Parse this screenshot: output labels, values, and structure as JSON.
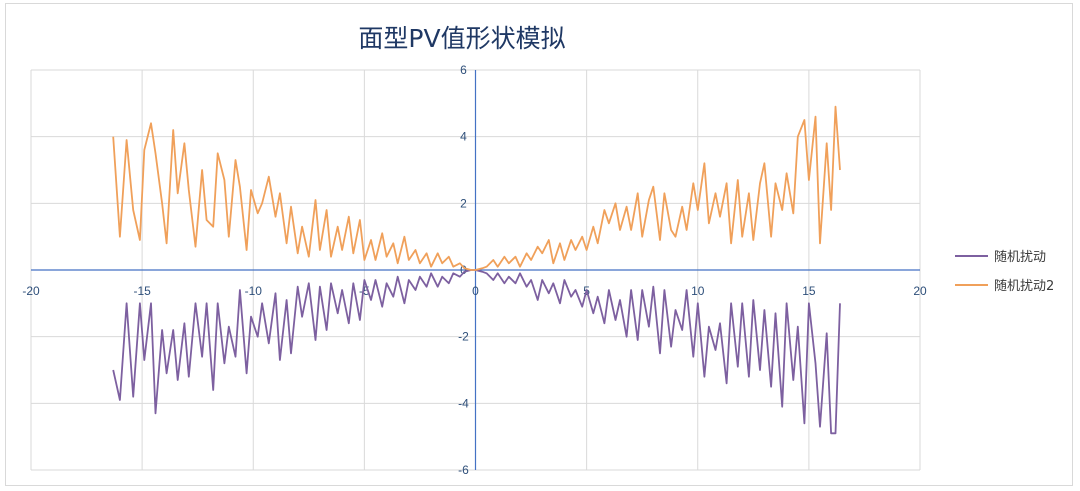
{
  "chart_data": {
    "type": "line",
    "title": "面型PV值形状模拟",
    "xlabel": "",
    "ylabel": "",
    "xlim": [
      -20,
      20
    ],
    "ylim": [
      -6,
      6
    ],
    "xticks": [
      -20,
      -15,
      -10,
      -5,
      0,
      5,
      10,
      15,
      20
    ],
    "yticks": [
      -6,
      -4,
      -2,
      0,
      2,
      4,
      6
    ],
    "grid": true,
    "legend_position": "right",
    "colors": {
      "series1": "#7d60a0",
      "series2": "#f0a05a",
      "grid": "#d9d9d9",
      "axis": "#4472c4"
    },
    "series": [
      {
        "name": "随机扰动",
        "color": "#7d60a0",
        "points": [
          [
            -16.3,
            -3.0
          ],
          [
            -16.0,
            -3.9
          ],
          [
            -15.7,
            -1.0
          ],
          [
            -15.4,
            -3.8
          ],
          [
            -15.1,
            -1.0
          ],
          [
            -14.9,
            -2.7
          ],
          [
            -14.6,
            -1.0
          ],
          [
            -14.4,
            -4.3
          ],
          [
            -14.1,
            -1.8
          ],
          [
            -13.9,
            -3.1
          ],
          [
            -13.6,
            -1.8
          ],
          [
            -13.4,
            -3.3
          ],
          [
            -13.1,
            -1.6
          ],
          [
            -12.9,
            -3.2
          ],
          [
            -12.6,
            -1.0
          ],
          [
            -12.3,
            -2.6
          ],
          [
            -12.1,
            -1.0
          ],
          [
            -11.8,
            -3.6
          ],
          [
            -11.6,
            -1.0
          ],
          [
            -11.3,
            -2.8
          ],
          [
            -11.1,
            -1.7
          ],
          [
            -10.8,
            -2.6
          ],
          [
            -10.6,
            -0.6
          ],
          [
            -10.3,
            -3.1
          ],
          [
            -10.1,
            -1.4
          ],
          [
            -9.8,
            -2.0
          ],
          [
            -9.6,
            -1.0
          ],
          [
            -9.3,
            -2.2
          ],
          [
            -9.0,
            -0.7
          ],
          [
            -8.8,
            -2.7
          ],
          [
            -8.5,
            -0.9
          ],
          [
            -8.3,
            -2.5
          ],
          [
            -8.0,
            -0.5
          ],
          [
            -7.8,
            -1.4
          ],
          [
            -7.5,
            -0.4
          ],
          [
            -7.2,
            -2.1
          ],
          [
            -7.0,
            -0.5
          ],
          [
            -6.7,
            -1.8
          ],
          [
            -6.5,
            -0.4
          ],
          [
            -6.2,
            -1.3
          ],
          [
            -6.0,
            -0.6
          ],
          [
            -5.7,
            -1.6
          ],
          [
            -5.5,
            -0.4
          ],
          [
            -5.2,
            -1.5
          ],
          [
            -5.0,
            -0.3
          ],
          [
            -4.7,
            -0.9
          ],
          [
            -4.5,
            -0.3
          ],
          [
            -4.2,
            -1.1
          ],
          [
            -4.0,
            -0.4
          ],
          [
            -3.7,
            -0.8
          ],
          [
            -3.5,
            -0.2
          ],
          [
            -3.2,
            -1.0
          ],
          [
            -3.0,
            -0.3
          ],
          [
            -2.7,
            -0.6
          ],
          [
            -2.5,
            -0.2
          ],
          [
            -2.2,
            -0.5
          ],
          [
            -2.0,
            -0.1
          ],
          [
            -1.7,
            -0.5
          ],
          [
            -1.5,
            -0.2
          ],
          [
            -1.2,
            -0.4
          ],
          [
            -1.0,
            -0.1
          ],
          [
            -0.7,
            -0.2
          ],
          [
            -0.5,
            -0.05
          ],
          [
            -0.2,
            0.0
          ],
          [
            0.0,
            0.0
          ],
          [
            0.3,
            -0.05
          ],
          [
            0.5,
            -0.1
          ],
          [
            0.8,
            -0.3
          ],
          [
            1.0,
            -0.1
          ],
          [
            1.3,
            -0.4
          ],
          [
            1.5,
            -0.2
          ],
          [
            1.8,
            -0.4
          ],
          [
            2.0,
            -0.1
          ],
          [
            2.3,
            -0.5
          ],
          [
            2.5,
            -0.3
          ],
          [
            2.8,
            -0.9
          ],
          [
            3.0,
            -0.3
          ],
          [
            3.3,
            -0.7
          ],
          [
            3.5,
            -0.4
          ],
          [
            3.8,
            -1.0
          ],
          [
            4.0,
            -0.3
          ],
          [
            4.3,
            -0.8
          ],
          [
            4.5,
            -0.6
          ],
          [
            4.8,
            -1.1
          ],
          [
            5.0,
            -0.6
          ],
          [
            5.3,
            -1.3
          ],
          [
            5.5,
            -0.8
          ],
          [
            5.8,
            -1.6
          ],
          [
            6.0,
            -0.6
          ],
          [
            6.3,
            -1.5
          ],
          [
            6.5,
            -0.9
          ],
          [
            6.8,
            -2.0
          ],
          [
            7.0,
            -0.6
          ],
          [
            7.3,
            -2.1
          ],
          [
            7.5,
            -0.6
          ],
          [
            7.8,
            -1.7
          ],
          [
            8.0,
            -0.5
          ],
          [
            8.3,
            -2.5
          ],
          [
            8.5,
            -0.6
          ],
          [
            8.8,
            -2.3
          ],
          [
            9.0,
            -1.2
          ],
          [
            9.3,
            -1.8
          ],
          [
            9.5,
            -0.6
          ],
          [
            9.8,
            -2.6
          ],
          [
            10.0,
            -1.0
          ],
          [
            10.3,
            -3.2
          ],
          [
            10.5,
            -1.7
          ],
          [
            10.8,
            -2.4
          ],
          [
            11.0,
            -1.6
          ],
          [
            11.3,
            -3.4
          ],
          [
            11.5,
            -1.0
          ],
          [
            11.8,
            -2.9
          ],
          [
            12.0,
            -1.0
          ],
          [
            12.3,
            -3.2
          ],
          [
            12.5,
            -0.9
          ],
          [
            12.8,
            -3.0
          ],
          [
            13.0,
            -1.2
          ],
          [
            13.3,
            -3.5
          ],
          [
            13.5,
            -1.3
          ],
          [
            13.8,
            -4.1
          ],
          [
            14.0,
            -1.0
          ],
          [
            14.3,
            -3.3
          ],
          [
            14.5,
            -1.7
          ],
          [
            14.8,
            -4.6
          ],
          [
            15.0,
            -1.0
          ],
          [
            15.3,
            -2.8
          ],
          [
            15.5,
            -4.7
          ],
          [
            15.8,
            -1.9
          ],
          [
            16.0,
            -4.9
          ],
          [
            16.2,
            -4.9
          ],
          [
            16.4,
            -1.0
          ]
        ]
      },
      {
        "name": "随机扰动2",
        "color": "#f0a05a",
        "points": [
          [
            -16.3,
            4.0
          ],
          [
            -16.0,
            1.0
          ],
          [
            -15.7,
            3.9
          ],
          [
            -15.4,
            1.8
          ],
          [
            -15.1,
            0.9
          ],
          [
            -14.9,
            3.6
          ],
          [
            -14.6,
            4.4
          ],
          [
            -14.4,
            3.5
          ],
          [
            -14.1,
            2.0
          ],
          [
            -13.9,
            0.8
          ],
          [
            -13.6,
            4.2
          ],
          [
            -13.4,
            2.3
          ],
          [
            -13.1,
            3.8
          ],
          [
            -12.9,
            2.4
          ],
          [
            -12.6,
            0.7
          ],
          [
            -12.3,
            3.0
          ],
          [
            -12.1,
            1.5
          ],
          [
            -11.8,
            1.3
          ],
          [
            -11.6,
            3.5
          ],
          [
            -11.3,
            2.7
          ],
          [
            -11.1,
            1.0
          ],
          [
            -10.8,
            3.3
          ],
          [
            -10.6,
            2.5
          ],
          [
            -10.3,
            0.6
          ],
          [
            -10.1,
            2.4
          ],
          [
            -9.8,
            1.7
          ],
          [
            -9.6,
            2.0
          ],
          [
            -9.3,
            2.8
          ],
          [
            -9.0,
            1.6
          ],
          [
            -8.8,
            2.3
          ],
          [
            -8.5,
            0.8
          ],
          [
            -8.3,
            1.9
          ],
          [
            -8.0,
            0.5
          ],
          [
            -7.8,
            1.3
          ],
          [
            -7.5,
            0.4
          ],
          [
            -7.2,
            2.1
          ],
          [
            -7.0,
            0.6
          ],
          [
            -6.7,
            1.8
          ],
          [
            -6.5,
            0.4
          ],
          [
            -6.2,
            1.3
          ],
          [
            -6.0,
            0.6
          ],
          [
            -5.7,
            1.6
          ],
          [
            -5.5,
            0.5
          ],
          [
            -5.2,
            1.5
          ],
          [
            -5.0,
            0.3
          ],
          [
            -4.7,
            0.9
          ],
          [
            -4.5,
            0.3
          ],
          [
            -4.2,
            1.1
          ],
          [
            -4.0,
            0.4
          ],
          [
            -3.7,
            0.8
          ],
          [
            -3.5,
            0.2
          ],
          [
            -3.2,
            1.0
          ],
          [
            -3.0,
            0.3
          ],
          [
            -2.7,
            0.6
          ],
          [
            -2.5,
            0.2
          ],
          [
            -2.2,
            0.5
          ],
          [
            -2.0,
            0.1
          ],
          [
            -1.7,
            0.5
          ],
          [
            -1.5,
            0.2
          ],
          [
            -1.2,
            0.4
          ],
          [
            -1.0,
            0.1
          ],
          [
            -0.7,
            0.2
          ],
          [
            -0.5,
            0.05
          ],
          [
            -0.2,
            0.0
          ],
          [
            0.0,
            0.0
          ],
          [
            0.3,
            0.05
          ],
          [
            0.5,
            0.1
          ],
          [
            0.8,
            0.3
          ],
          [
            1.0,
            0.1
          ],
          [
            1.3,
            0.4
          ],
          [
            1.5,
            0.2
          ],
          [
            1.8,
            0.4
          ],
          [
            2.0,
            0.1
          ],
          [
            2.3,
            0.5
          ],
          [
            2.5,
            0.3
          ],
          [
            2.8,
            0.7
          ],
          [
            3.0,
            0.5
          ],
          [
            3.3,
            0.9
          ],
          [
            3.5,
            0.2
          ],
          [
            3.8,
            0.8
          ],
          [
            4.0,
            0.3
          ],
          [
            4.3,
            0.9
          ],
          [
            4.5,
            0.6
          ],
          [
            4.8,
            1.0
          ],
          [
            5.0,
            0.6
          ],
          [
            5.3,
            1.3
          ],
          [
            5.5,
            0.8
          ],
          [
            5.8,
            1.8
          ],
          [
            6.0,
            1.4
          ],
          [
            6.3,
            2.0
          ],
          [
            6.5,
            1.2
          ],
          [
            6.8,
            1.9
          ],
          [
            7.0,
            1.2
          ],
          [
            7.3,
            2.3
          ],
          [
            7.5,
            1.0
          ],
          [
            7.8,
            2.1
          ],
          [
            8.0,
            2.5
          ],
          [
            8.3,
            0.9
          ],
          [
            8.5,
            2.3
          ],
          [
            8.8,
            1.2
          ],
          [
            9.0,
            1.0
          ],
          [
            9.3,
            1.9
          ],
          [
            9.5,
            1.2
          ],
          [
            9.8,
            2.6
          ],
          [
            10.0,
            1.8
          ],
          [
            10.3,
            3.2
          ],
          [
            10.5,
            1.4
          ],
          [
            10.8,
            2.3
          ],
          [
            11.0,
            1.6
          ],
          [
            11.3,
            2.6
          ],
          [
            11.5,
            0.8
          ],
          [
            11.8,
            2.7
          ],
          [
            12.0,
            1.0
          ],
          [
            12.3,
            2.3
          ],
          [
            12.5,
            0.9
          ],
          [
            12.8,
            2.6
          ],
          [
            13.0,
            3.2
          ],
          [
            13.3,
            1.0
          ],
          [
            13.5,
            2.6
          ],
          [
            13.8,
            1.8
          ],
          [
            14.0,
            2.9
          ],
          [
            14.3,
            1.7
          ],
          [
            14.5,
            4.0
          ],
          [
            14.8,
            4.5
          ],
          [
            15.0,
            2.7
          ],
          [
            15.3,
            4.6
          ],
          [
            15.5,
            0.8
          ],
          [
            15.8,
            3.8
          ],
          [
            16.0,
            1.8
          ],
          [
            16.2,
            4.9
          ],
          [
            16.4,
            3.0
          ]
        ]
      }
    ]
  }
}
